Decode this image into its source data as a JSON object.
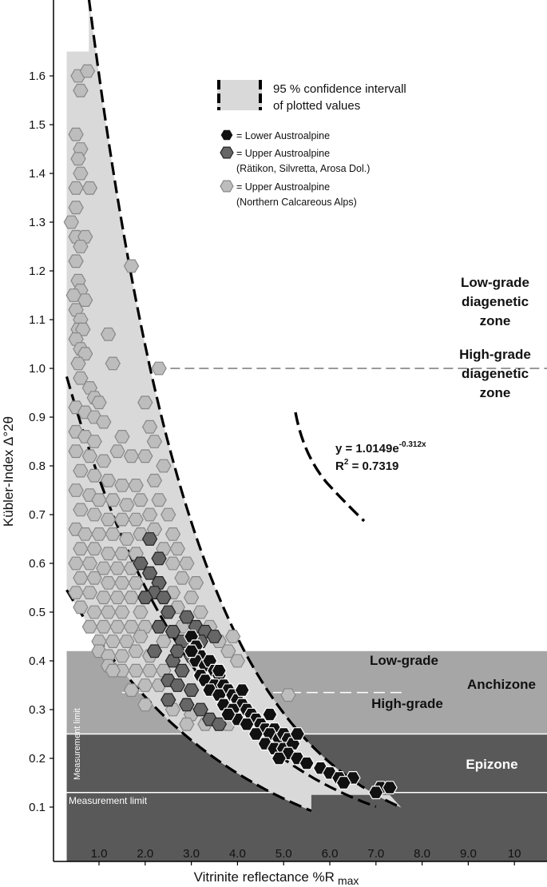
{
  "chart_data": {
    "type": "scatter",
    "xlabel": "Vitrinite reflectance %R",
    "xlabel_sub": "max",
    "ylabel": "Kübler-Index Δ°2θ",
    "xlim": [
      0.2,
      10.5
    ],
    "ylim": [
      0.05,
      1.64
    ],
    "x_ticks": [
      "1.0",
      "2.0",
      "3.0",
      "4.0",
      "5.0",
      "6.0",
      "7.0",
      "8.0",
      "9.0",
      "10"
    ],
    "y_ticks": [
      "0.1",
      "0.2",
      "0.3",
      "0.4",
      "0.5",
      "0.6",
      "0.7",
      "0.8",
      "0.9",
      "1.0",
      "1.1",
      "1.2",
      "1.3",
      "1.4",
      "1.5",
      "1.6"
    ],
    "colors": {
      "lower": "#111111",
      "upper_dark": "#666666",
      "upper_light": "#bdbdbd",
      "band": "#d9d9d9",
      "anchizone": "#a6a6a6",
      "epizone": "#595959"
    },
    "zones": {
      "anchizone_range": [
        0.25,
        0.42
      ],
      "epizone_range": [
        0.05,
        0.25
      ],
      "anchizone_split": 0.335,
      "diagenetic_boundary": 1.0,
      "measurement_limit_y": 0.13,
      "measurement_limit_x": 0.3
    },
    "fit": {
      "a": 1.0149,
      "b": -0.312
    },
    "series": [
      {
        "name": "Lower Austroalpine",
        "points": [
          [
            3.0,
            0.45
          ],
          [
            3.1,
            0.43
          ],
          [
            3.2,
            0.41
          ],
          [
            3.1,
            0.4
          ],
          [
            3.3,
            0.39
          ],
          [
            3.4,
            0.4
          ],
          [
            3.5,
            0.38
          ],
          [
            3.6,
            0.37
          ],
          [
            3.2,
            0.37
          ],
          [
            3.3,
            0.36
          ],
          [
            3.5,
            0.35
          ],
          [
            3.7,
            0.35
          ],
          [
            3.8,
            0.34
          ],
          [
            3.4,
            0.34
          ],
          [
            3.6,
            0.33
          ],
          [
            3.9,
            0.33
          ],
          [
            4.0,
            0.32
          ],
          [
            3.7,
            0.31
          ],
          [
            4.1,
            0.31
          ],
          [
            4.2,
            0.3
          ],
          [
            3.9,
            0.3
          ],
          [
            4.3,
            0.29
          ],
          [
            4.0,
            0.28
          ],
          [
            4.4,
            0.28
          ],
          [
            4.5,
            0.27
          ],
          [
            4.2,
            0.27
          ],
          [
            4.6,
            0.26
          ],
          [
            4.8,
            0.26
          ],
          [
            4.4,
            0.25
          ],
          [
            4.7,
            0.25
          ],
          [
            4.9,
            0.24
          ],
          [
            5.0,
            0.25
          ],
          [
            5.1,
            0.24
          ],
          [
            4.6,
            0.23
          ],
          [
            4.8,
            0.22
          ],
          [
            5.0,
            0.22
          ],
          [
            5.2,
            0.23
          ],
          [
            5.1,
            0.21
          ],
          [
            4.9,
            0.2
          ],
          [
            5.3,
            0.2
          ],
          [
            5.5,
            0.19
          ],
          [
            5.8,
            0.18
          ],
          [
            6.0,
            0.17
          ],
          [
            6.2,
            0.16
          ],
          [
            6.5,
            0.16
          ],
          [
            6.3,
            0.15
          ],
          [
            7.1,
            0.14
          ],
          [
            7.3,
            0.14
          ],
          [
            7.0,
            0.13
          ],
          [
            3.6,
            0.38
          ],
          [
            4.1,
            0.34
          ],
          [
            4.7,
            0.29
          ],
          [
            5.3,
            0.25
          ],
          [
            3.0,
            0.42
          ],
          [
            3.8,
            0.29
          ]
        ]
      },
      {
        "name": "Upper Austroalpine",
        "note": "(Rätikon, Silvretta, Arosa Dol.)",
        "points": [
          [
            2.1,
            0.65
          ],
          [
            2.3,
            0.61
          ],
          [
            1.9,
            0.6
          ],
          [
            2.1,
            0.58
          ],
          [
            2.3,
            0.56
          ],
          [
            2.2,
            0.54
          ],
          [
            2.4,
            0.53
          ],
          [
            2.0,
            0.53
          ],
          [
            2.5,
            0.5
          ],
          [
            2.3,
            0.47
          ],
          [
            2.6,
            0.46
          ],
          [
            2.9,
            0.49
          ],
          [
            3.1,
            0.47
          ],
          [
            3.3,
            0.46
          ],
          [
            3.5,
            0.45
          ],
          [
            2.8,
            0.44
          ],
          [
            3.0,
            0.41
          ],
          [
            2.6,
            0.4
          ],
          [
            2.8,
            0.38
          ],
          [
            2.5,
            0.36
          ],
          [
            2.7,
            0.35
          ],
          [
            3.0,
            0.34
          ],
          [
            2.5,
            0.32
          ],
          [
            2.9,
            0.31
          ],
          [
            3.2,
            0.3
          ],
          [
            3.4,
            0.28
          ],
          [
            3.6,
            0.27
          ],
          [
            3.2,
            0.44
          ],
          [
            2.7,
            0.42
          ],
          [
            2.2,
            0.42
          ]
        ]
      },
      {
        "name": "Upper Austroalpine",
        "note": "(Northern Calcareous Alps)",
        "points": [
          [
            0.55,
            1.6
          ],
          [
            0.75,
            1.61
          ],
          [
            0.6,
            1.57
          ],
          [
            0.5,
            1.48
          ],
          [
            0.6,
            1.45
          ],
          [
            0.55,
            1.43
          ],
          [
            0.6,
            1.4
          ],
          [
            0.5,
            1.37
          ],
          [
            0.8,
            1.37
          ],
          [
            0.5,
            1.33
          ],
          [
            0.4,
            1.3
          ],
          [
            0.5,
            1.27
          ],
          [
            0.7,
            1.27
          ],
          [
            0.6,
            1.25
          ],
          [
            0.5,
            1.22
          ],
          [
            1.7,
            1.21
          ],
          [
            0.55,
            1.18
          ],
          [
            0.6,
            1.16
          ],
          [
            0.45,
            1.15
          ],
          [
            0.7,
            1.14
          ],
          [
            0.5,
            1.12
          ],
          [
            0.6,
            1.1
          ],
          [
            0.55,
            1.08
          ],
          [
            0.65,
            1.08
          ],
          [
            0.5,
            1.06
          ],
          [
            1.2,
            1.07
          ],
          [
            0.6,
            1.04
          ],
          [
            0.7,
            1.03
          ],
          [
            0.55,
            1.01
          ],
          [
            1.3,
            1.01
          ],
          [
            2.3,
            1.0
          ],
          [
            0.6,
            0.98
          ],
          [
            0.8,
            0.96
          ],
          [
            0.9,
            0.94
          ],
          [
            1.0,
            0.93
          ],
          [
            0.5,
            0.92
          ],
          [
            0.7,
            0.91
          ],
          [
            0.9,
            0.9
          ],
          [
            1.1,
            0.89
          ],
          [
            0.5,
            0.87
          ],
          [
            0.7,
            0.86
          ],
          [
            0.9,
            0.85
          ],
          [
            1.5,
            0.86
          ],
          [
            2.0,
            0.93
          ],
          [
            2.1,
            0.88
          ],
          [
            2.2,
            0.85
          ],
          [
            0.5,
            0.83
          ],
          [
            0.8,
            0.82
          ],
          [
            1.1,
            0.81
          ],
          [
            1.4,
            0.83
          ],
          [
            1.7,
            0.82
          ],
          [
            2.0,
            0.82
          ],
          [
            2.4,
            0.8
          ],
          [
            0.6,
            0.79
          ],
          [
            0.9,
            0.78
          ],
          [
            1.2,
            0.77
          ],
          [
            1.5,
            0.76
          ],
          [
            1.8,
            0.76
          ],
          [
            2.2,
            0.77
          ],
          [
            0.5,
            0.75
          ],
          [
            0.8,
            0.74
          ],
          [
            1.0,
            0.73
          ],
          [
            1.3,
            0.73
          ],
          [
            1.6,
            0.72
          ],
          [
            1.9,
            0.73
          ],
          [
            2.3,
            0.73
          ],
          [
            0.6,
            0.71
          ],
          [
            0.9,
            0.7
          ],
          [
            1.2,
            0.69
          ],
          [
            1.5,
            0.69
          ],
          [
            1.8,
            0.69
          ],
          [
            2.1,
            0.7
          ],
          [
            2.5,
            0.7
          ],
          [
            0.5,
            0.67
          ],
          [
            0.7,
            0.66
          ],
          [
            1.0,
            0.66
          ],
          [
            1.3,
            0.66
          ],
          [
            1.6,
            0.65
          ],
          [
            1.9,
            0.66
          ],
          [
            2.2,
            0.67
          ],
          [
            2.6,
            0.66
          ],
          [
            0.6,
            0.63
          ],
          [
            0.9,
            0.63
          ],
          [
            1.2,
            0.62
          ],
          [
            1.5,
            0.62
          ],
          [
            1.8,
            0.62
          ],
          [
            2.4,
            0.63
          ],
          [
            2.7,
            0.63
          ],
          [
            0.5,
            0.6
          ],
          [
            0.8,
            0.6
          ],
          [
            1.1,
            0.59
          ],
          [
            1.4,
            0.59
          ],
          [
            1.7,
            0.59
          ],
          [
            2.6,
            0.6
          ],
          [
            2.9,
            0.6
          ],
          [
            0.6,
            0.57
          ],
          [
            0.9,
            0.57
          ],
          [
            1.2,
            0.56
          ],
          [
            1.5,
            0.56
          ],
          [
            1.8,
            0.56
          ],
          [
            2.8,
            0.57
          ],
          [
            3.1,
            0.56
          ],
          [
            0.5,
            0.54
          ],
          [
            0.8,
            0.54
          ],
          [
            1.1,
            0.53
          ],
          [
            1.4,
            0.53
          ],
          [
            1.7,
            0.53
          ],
          [
            2.6,
            0.54
          ],
          [
            3.0,
            0.53
          ],
          [
            0.6,
            0.51
          ],
          [
            0.9,
            0.5
          ],
          [
            1.2,
            0.5
          ],
          [
            1.5,
            0.5
          ],
          [
            1.9,
            0.5
          ],
          [
            2.7,
            0.51
          ],
          [
            3.2,
            0.5
          ],
          [
            0.8,
            0.47
          ],
          [
            1.1,
            0.47
          ],
          [
            1.4,
            0.47
          ],
          [
            1.7,
            0.47
          ],
          [
            2.0,
            0.47
          ],
          [
            2.8,
            0.47
          ],
          [
            3.4,
            0.47
          ],
          [
            1.0,
            0.44
          ],
          [
            1.3,
            0.44
          ],
          [
            1.6,
            0.44
          ],
          [
            1.9,
            0.45
          ],
          [
            2.4,
            0.44
          ],
          [
            3.6,
            0.44
          ],
          [
            3.9,
            0.45
          ],
          [
            1.0,
            0.42
          ],
          [
            1.2,
            0.41
          ],
          [
            1.5,
            0.41
          ],
          [
            1.8,
            0.42
          ],
          [
            2.1,
            0.41
          ],
          [
            3.8,
            0.42
          ],
          [
            4.0,
            0.4
          ],
          [
            1.2,
            0.39
          ],
          [
            1.5,
            0.38
          ],
          [
            1.8,
            0.38
          ],
          [
            2.1,
            0.38
          ],
          [
            2.4,
            0.38
          ],
          [
            2.0,
            0.35
          ],
          [
            2.3,
            0.35
          ],
          [
            1.7,
            0.34
          ],
          [
            2.0,
            0.31
          ],
          [
            2.6,
            0.3
          ],
          [
            3.0,
            0.29
          ],
          [
            2.9,
            0.27
          ],
          [
            3.3,
            0.27
          ],
          [
            5.1,
            0.33
          ],
          [
            3.8,
            0.27
          ],
          [
            1.3,
            0.38
          ]
        ]
      }
    ]
  },
  "legend": {
    "band_label_1": "95 % confidence intervall",
    "band_label_2": "of plotted values",
    "items": [
      {
        "label": "= Lower Austroalpine",
        "sub": ""
      },
      {
        "label": "= Upper Austroalpine",
        "sub": "(Rätikon, Silvretta, Arosa Dol.)"
      },
      {
        "label": "= Upper Austroalpine",
        "sub": "(Northern Calcareous Alps)"
      }
    ]
  },
  "annotations": {
    "low_grade_diagenetic": [
      "Low-grade",
      "diagenetic",
      "zone"
    ],
    "high_grade_diagenetic": [
      "High-grade",
      "diagenetic",
      "zone"
    ],
    "low_grade": "Low-grade",
    "high_grade": "High-grade",
    "anchizone": "Anchizone",
    "epizone": "Epizone",
    "measurement_limit": "Measurement limit",
    "measurement_limit_vertical": "Measurement limit",
    "equation_main": "y = 1.0149e",
    "equation_exp": "-0.312x",
    "r2_main": "R",
    "r2_sup": "2",
    "r2_value": " = 0.7319"
  }
}
